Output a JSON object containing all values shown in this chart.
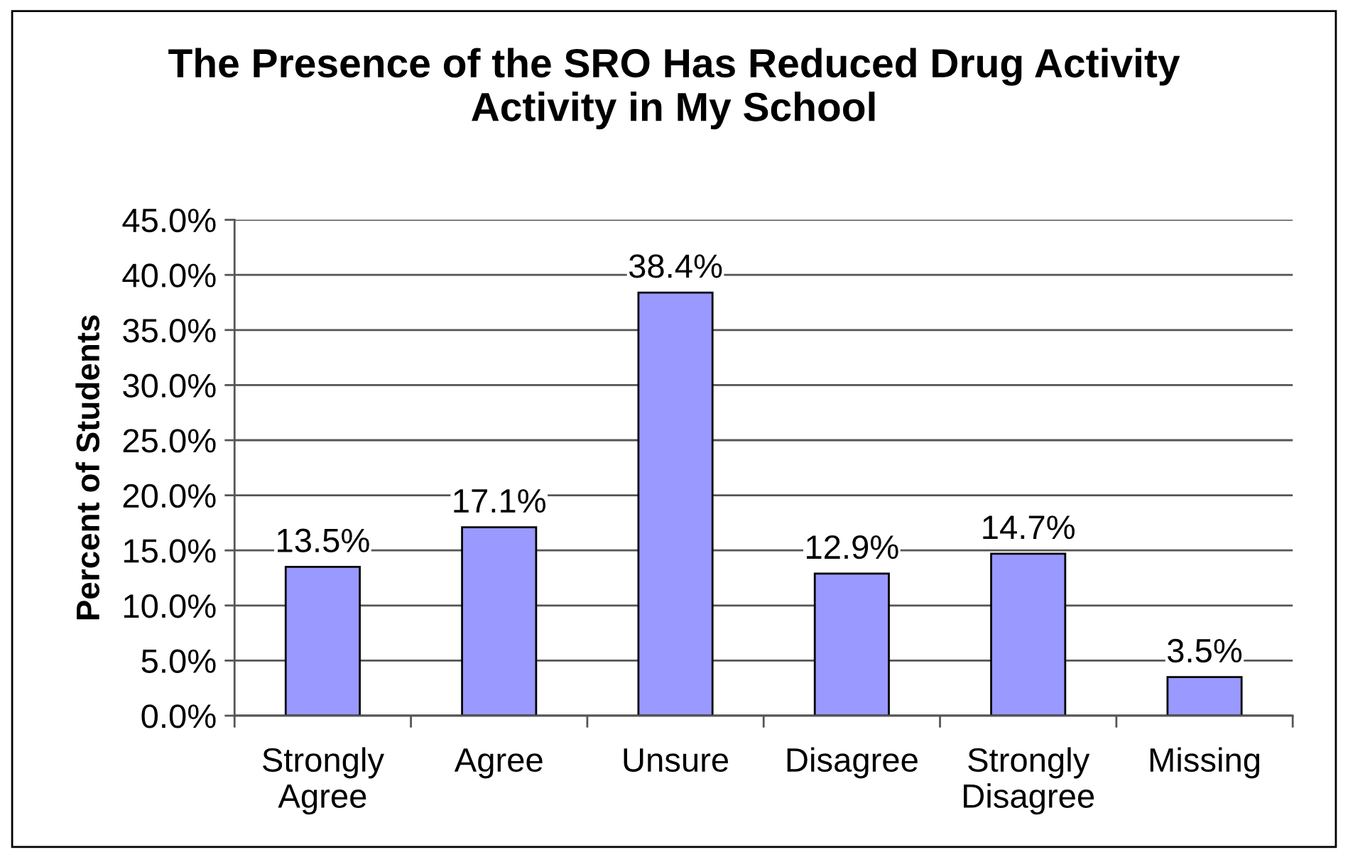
{
  "chart_data": {
    "type": "bar",
    "title": "The Presence of the SRO Has Reduced Drug Activity\nActivity in My School",
    "ylabel": "Percent of Students",
    "categories": [
      "Strongly\nAgree",
      "Agree",
      "Unsure",
      "Disagree",
      "Strongly\nDisagree",
      "Missing"
    ],
    "values": [
      13.5,
      17.1,
      38.4,
      12.9,
      14.7,
      3.5
    ],
    "value_labels": [
      "13.5%",
      "17.1%",
      "38.4%",
      "12.9%",
      "14.7%",
      "3.5%"
    ],
    "color": "#9999ff",
    "ylim": [
      0,
      45
    ],
    "yticks": [
      {
        "value": 0,
        "label": "0.0%"
      },
      {
        "value": 5,
        "label": "5.0%"
      },
      {
        "value": 10,
        "label": "10.0%"
      },
      {
        "value": 15,
        "label": "15.0%"
      },
      {
        "value": 20,
        "label": "20.0%"
      },
      {
        "value": 25,
        "label": "25.0%"
      },
      {
        "value": 30,
        "label": "30.0%"
      },
      {
        "value": 35,
        "label": "35.0%"
      },
      {
        "value": 40,
        "label": "40.0%"
      },
      {
        "value": 45,
        "label": "45.0%"
      }
    ],
    "grid": "y",
    "legend": false
  }
}
